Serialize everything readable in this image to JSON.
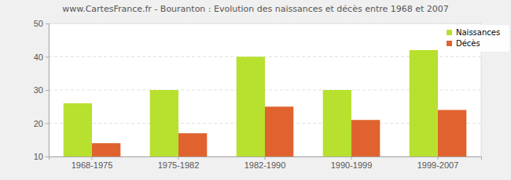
{
  "chart_data": {
    "type": "bar",
    "title": "www.CartesFrance.fr - Bouranton : Evolution des naissances et décès entre 1968 et 2007",
    "categories": [
      "1968-1975",
      "1975-1982",
      "1982-1990",
      "1990-1999",
      "1999-2007"
    ],
    "series": [
      {
        "name": "Naissances",
        "color": "#b8e02f",
        "values": [
          26,
          30,
          40,
          30,
          42
        ]
      },
      {
        "name": "Décès",
        "color": "#e0632f",
        "values": [
          14,
          17,
          25,
          21,
          24
        ]
      }
    ],
    "ylim": [
      10,
      50
    ],
    "yticks": [
      10,
      20,
      30,
      40,
      50
    ],
    "grid": true,
    "legend": "top-right"
  }
}
